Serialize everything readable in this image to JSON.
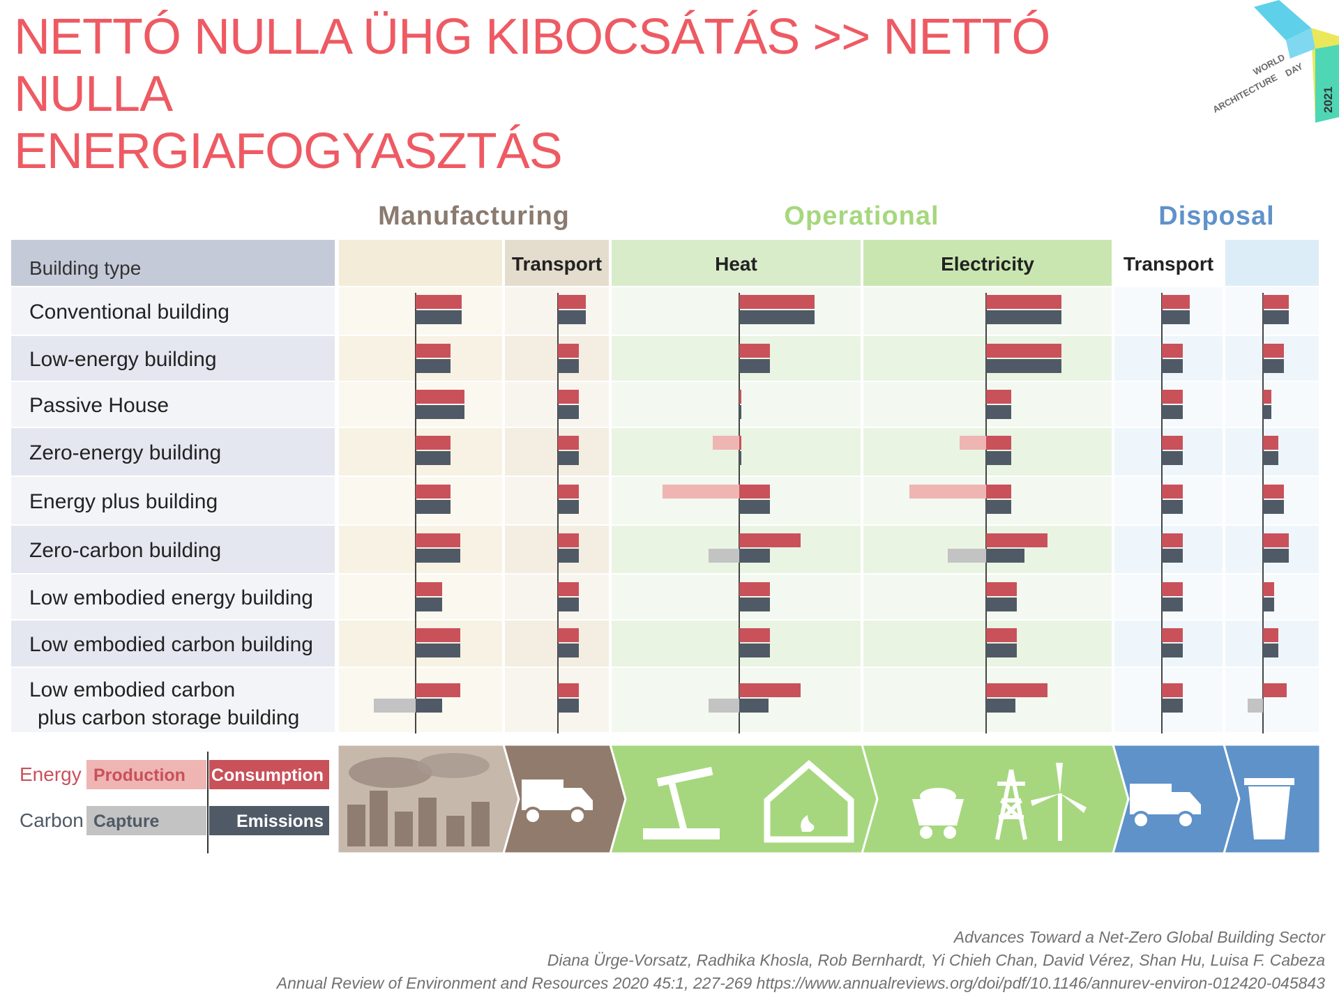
{
  "slide": {
    "title_line1": "NETTÓ NULLA ÜHG KIBOCSÁTÁS >> NETTÓ NULLA",
    "title_line2": "ENERGIAFOGYASZTÁS"
  },
  "logo": {
    "line1": "WORLD",
    "line2": "ARCHITECTURE",
    "line3": "DAY",
    "year": "2021"
  },
  "citation": {
    "line1": "Advances Toward a Net-Zero Global Building Sector",
    "line2": "Diana Ürge-Vorsatz, Radhika Khosla, Rob Bernhardt, Yi Chieh Chan, David Vérez, Shan Hu, Luisa F. Cabeza",
    "line3": "Annual Review of Environment and Resources 2020 45:1, 227-269  https://www.annualreviews.org/doi/pdf/10.1146/annurev-environ-012420-045843"
  },
  "chart_data": {
    "type": "bar",
    "orientation": "horizontal",
    "grid": false,
    "phases": [
      {
        "name": "Manufacturing",
        "color": "#8a7a70"
      },
      {
        "name": "Operational",
        "color": "#a6d77e"
      },
      {
        "name": "Disposal",
        "color": "#5f92c9"
      }
    ],
    "row_header": "Building type",
    "columns": [
      "",
      "Transport",
      "Heat",
      "Electricity",
      "Transport",
      ""
    ],
    "categories": [
      "Conventional building",
      "Low-energy building",
      "Passive House",
      "Zero-energy building",
      "Energy plus building",
      "Zero-carbon building",
      "Low embodied energy building",
      "Low embodied carbon building",
      "Low embodied carbon\n plus carbon storage building"
    ],
    "series": [
      {
        "name": "Consumption",
        "group": "Energy",
        "color": "#c9515a",
        "values": [
          [
            66,
            40,
            108,
            108,
            40,
            37
          ],
          [
            50,
            30,
            44,
            108,
            30,
            30
          ],
          [
            70,
            30,
            3,
            36,
            30,
            12
          ],
          [
            50,
            30,
            3,
            36,
            30,
            22
          ],
          [
            50,
            30,
            44,
            36,
            30,
            30
          ],
          [
            64,
            30,
            88,
            88,
            30,
            37
          ],
          [
            38,
            30,
            44,
            44,
            30,
            16
          ],
          [
            64,
            30,
            44,
            44,
            30,
            22
          ],
          [
            64,
            30,
            88,
            88,
            30,
            34
          ]
        ]
      },
      {
        "name": "Production",
        "group": "Energy",
        "color": "#eeb5b3",
        "values": [
          [
            0,
            0,
            0,
            0,
            0,
            0
          ],
          [
            0,
            0,
            0,
            0,
            0,
            0
          ],
          [
            0,
            0,
            0,
            0,
            0,
            0
          ],
          [
            0,
            0,
            38,
            38,
            0,
            0
          ],
          [
            0,
            0,
            110,
            110,
            0,
            0
          ],
          [
            0,
            0,
            0,
            0,
            0,
            0
          ],
          [
            0,
            0,
            0,
            0,
            0,
            0
          ],
          [
            0,
            0,
            0,
            0,
            0,
            0
          ],
          [
            0,
            0,
            0,
            0,
            0,
            0
          ]
        ]
      },
      {
        "name": "Emissions",
        "group": "Carbon",
        "color": "#4f5a66",
        "values": [
          [
            66,
            40,
            108,
            108,
            40,
            37
          ],
          [
            50,
            30,
            44,
            108,
            30,
            30
          ],
          [
            70,
            30,
            3,
            36,
            30,
            12
          ],
          [
            50,
            30,
            3,
            36,
            30,
            22
          ],
          [
            50,
            30,
            44,
            36,
            30,
            30
          ],
          [
            64,
            30,
            44,
            55,
            30,
            37
          ],
          [
            38,
            30,
            44,
            44,
            30,
            16
          ],
          [
            64,
            30,
            44,
            44,
            30,
            22
          ],
          [
            38,
            30,
            42,
            42,
            30,
            0
          ]
        ]
      },
      {
        "name": "Capture",
        "group": "Carbon",
        "color": "#c3c3c3",
        "values": [
          [
            0,
            0,
            0,
            0,
            0,
            0
          ],
          [
            0,
            0,
            0,
            0,
            0,
            0
          ],
          [
            0,
            0,
            0,
            0,
            0,
            0
          ],
          [
            0,
            0,
            0,
            0,
            0,
            0
          ],
          [
            0,
            0,
            0,
            0,
            0,
            0
          ],
          [
            0,
            0,
            44,
            55,
            0,
            0
          ],
          [
            0,
            0,
            0,
            0,
            0,
            0
          ],
          [
            0,
            0,
            0,
            0,
            0,
            0
          ],
          [
            60,
            0,
            44,
            0,
            0,
            22
          ]
        ]
      }
    ],
    "legend": {
      "placement": "bottom-left",
      "rows": [
        {
          "label": "Energy",
          "left": "Production",
          "right": "Consumption"
        },
        {
          "label": "Carbon",
          "left": "Capture",
          "right": "Emissions"
        }
      ]
    },
    "icons": [
      "factories-icon",
      "truck-icon",
      "oil-pump-icon",
      "house-heating-icon",
      "coal-cart-icon",
      "power-pylon-icon",
      "wind-turbine-icon",
      "truck-icon",
      "trash-bin-icon"
    ]
  }
}
